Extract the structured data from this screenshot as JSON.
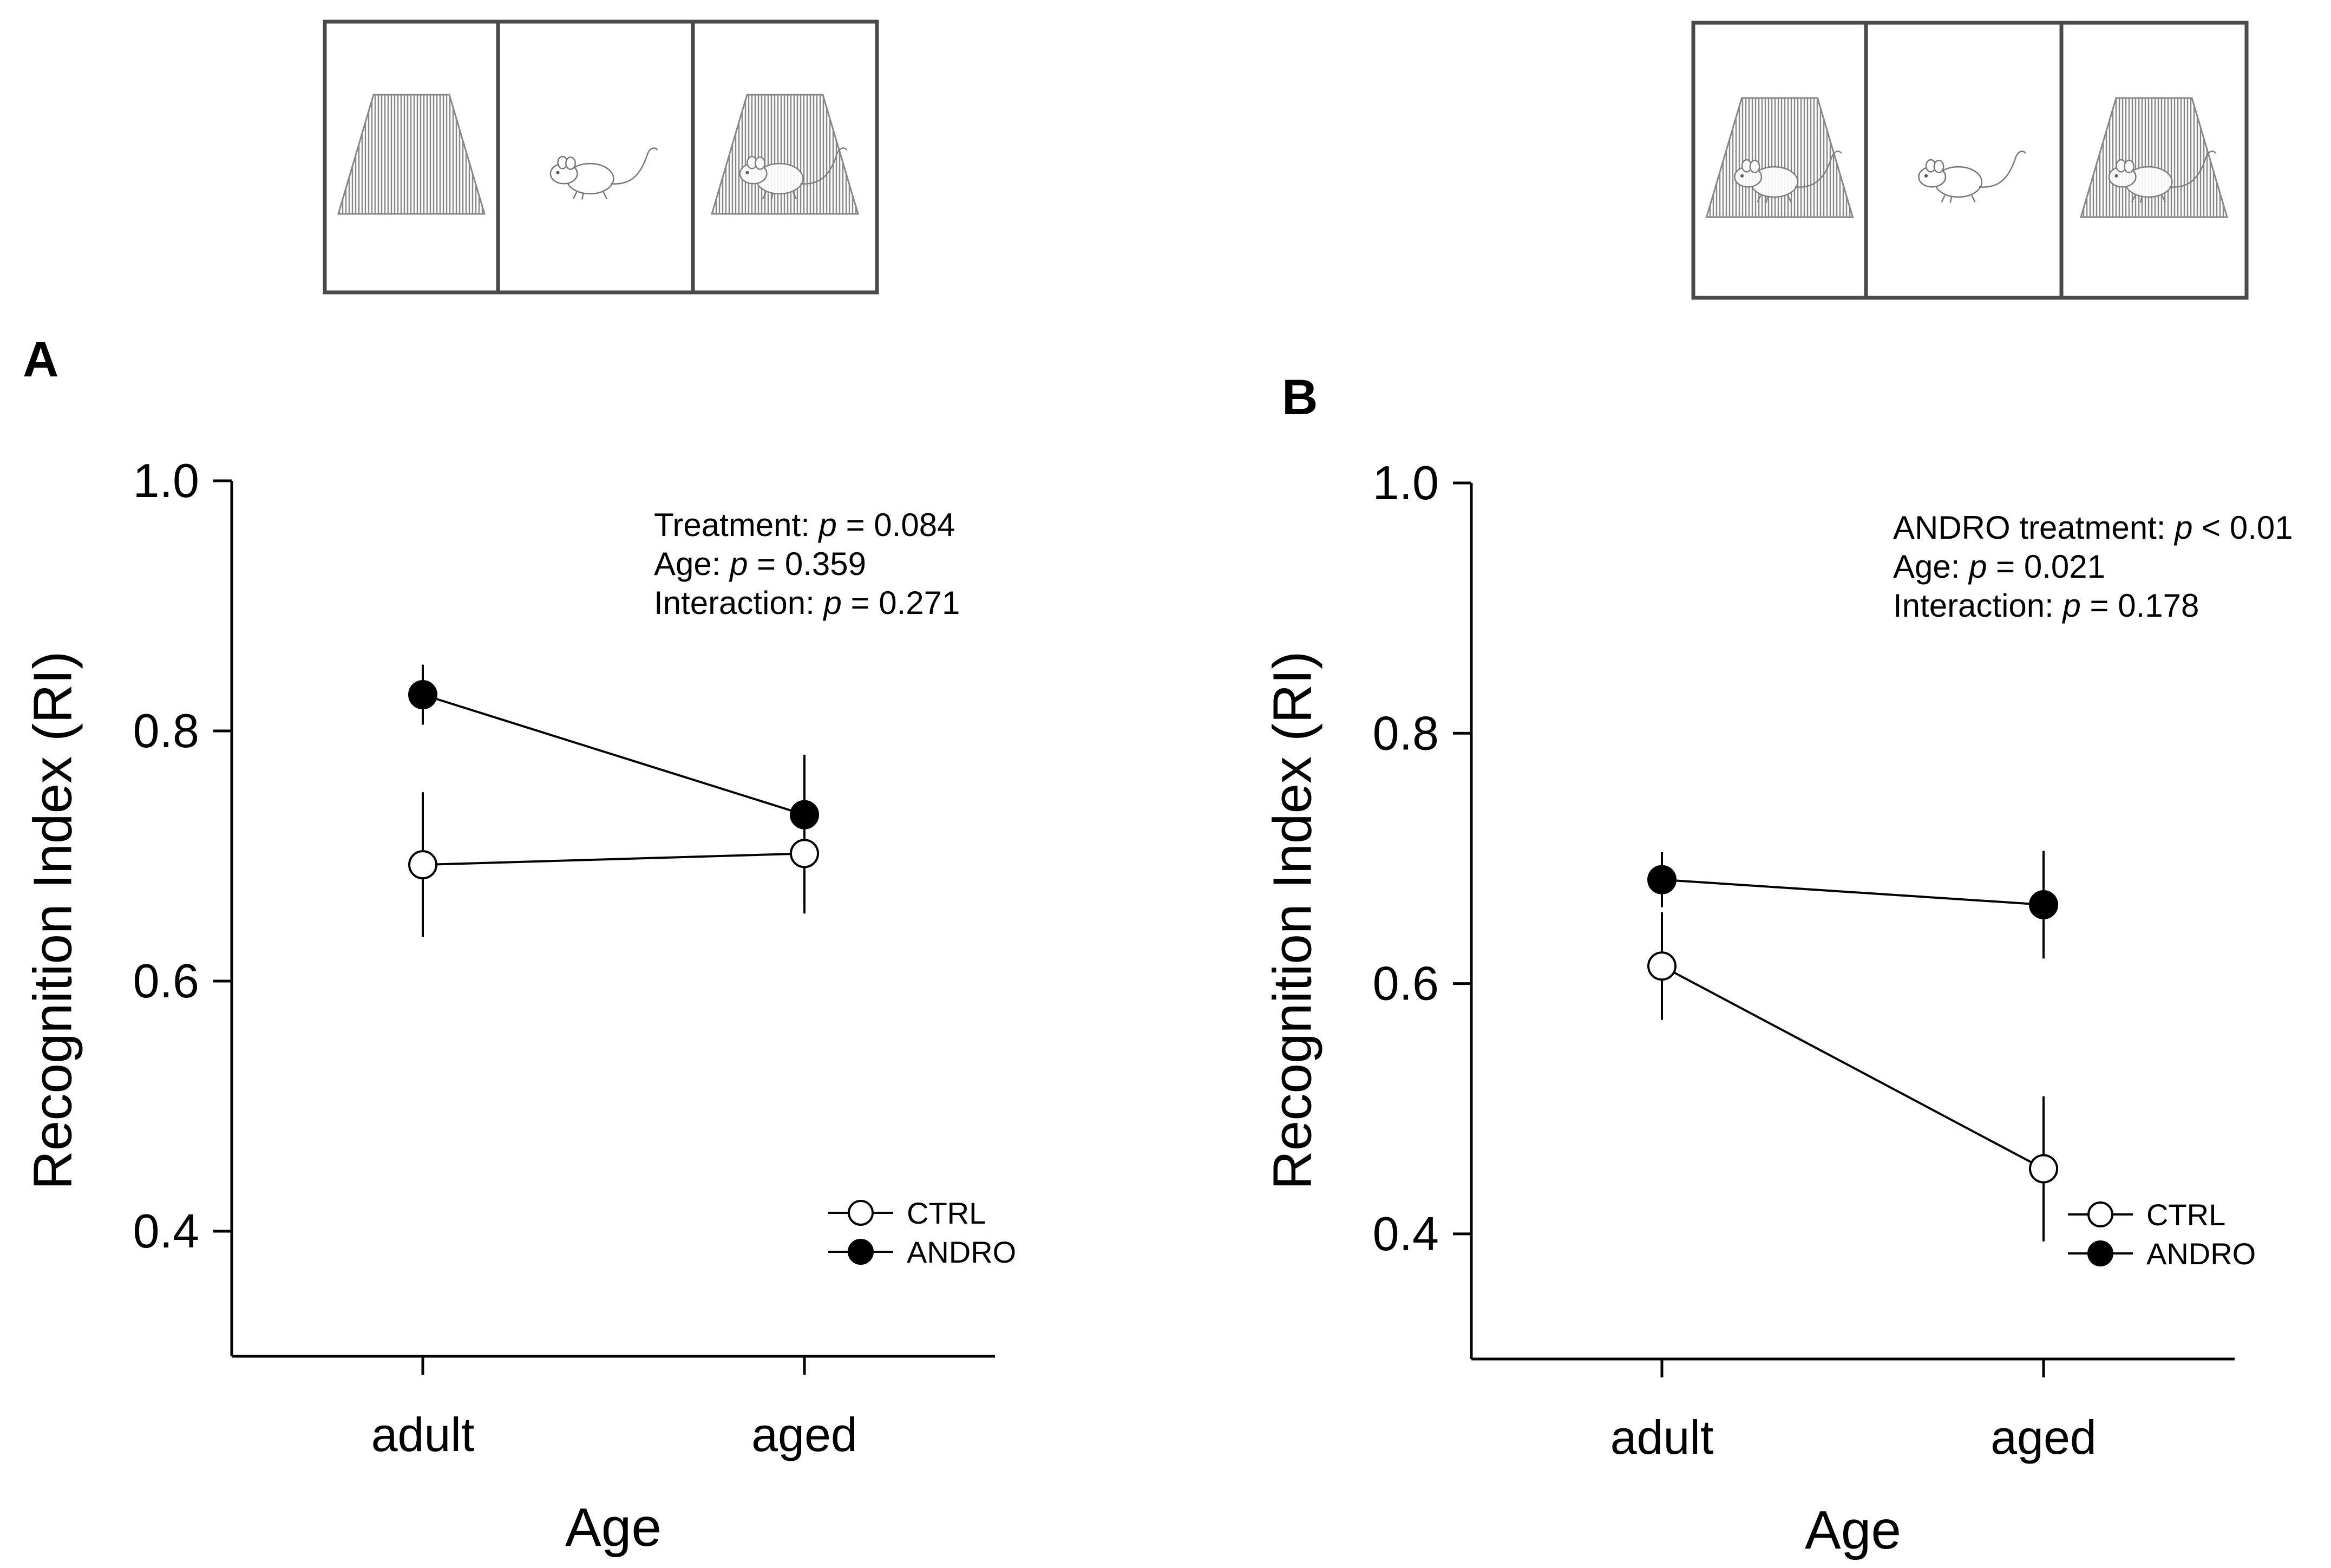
{
  "figure": {
    "colors": {
      "axis": "#000000",
      "filled": "#000000",
      "open": "#ffffff",
      "apparatus_frame": "#4a4a4a",
      "hatch": "#888888"
    },
    "apparatus": [
      {
        "panel": "A",
        "cages": [
          "empty",
          "rat",
          "rat"
        ]
      },
      {
        "panel": "B",
        "cages": [
          "rat",
          "rat",
          "rat"
        ]
      }
    ]
  },
  "chart_data": [
    {
      "type": "line",
      "panel_label": "A",
      "xlabel": "Age",
      "ylabel": "Recognition Index (RI)",
      "categories": [
        "adult",
        "aged"
      ],
      "ylim": [
        0.3,
        1.0
      ],
      "yticks": [
        0.4,
        0.6,
        0.8,
        1.0
      ],
      "ytick_labels": [
        "0.4",
        "0.6",
        "0.8",
        "1.0"
      ],
      "series": [
        {
          "name": "CTRL",
          "marker": "open",
          "values": [
            0.693,
            0.702
          ],
          "errors": [
            0.058,
            0.048
          ]
        },
        {
          "name": "ANDRO",
          "marker": "filled",
          "values": [
            0.829,
            0.733
          ],
          "errors": [
            0.024,
            0.048
          ]
        }
      ],
      "legend_position": "bottom-right",
      "stats": [
        {
          "label": "Treatment: ",
          "p": "p",
          "value": " = 0.084"
        },
        {
          "label": "Age: ",
          "p": "p",
          "value": " = 0.359"
        },
        {
          "label": "Interaction: ",
          "p": "p",
          "value": " = 0.271"
        }
      ]
    },
    {
      "type": "line",
      "panel_label": "B",
      "xlabel": "Age",
      "ylabel": "Recognition Index (RI)",
      "categories": [
        "adult",
        "aged"
      ],
      "ylim": [
        0.3,
        1.0
      ],
      "yticks": [
        0.4,
        0.6,
        0.8,
        1.0
      ],
      "ytick_labels": [
        "0.4",
        "0.6",
        "0.8",
        "1.0"
      ],
      "series": [
        {
          "name": "CTRL",
          "marker": "open",
          "values": [
            0.614,
            0.452
          ],
          "errors": [
            0.043,
            0.058
          ]
        },
        {
          "name": "ANDRO",
          "marker": "filled",
          "values": [
            0.683,
            0.663
          ],
          "errors": [
            0.022,
            0.043
          ]
        }
      ],
      "legend_position": "bottom-right",
      "stats": [
        {
          "label": "ANDRO treatment: ",
          "p": "p",
          "value": " < 0.01"
        },
        {
          "label": "Age: ",
          "p": "p",
          "value": " = 0.021"
        },
        {
          "label": "Interaction: ",
          "p": "p",
          "value": " = 0.178"
        }
      ]
    }
  ]
}
